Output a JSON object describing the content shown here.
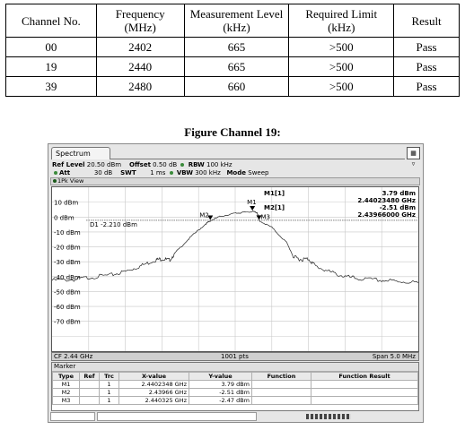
{
  "results_table": {
    "headers": [
      [
        "Channel No."
      ],
      [
        "Frequency",
        "(MHz)"
      ],
      [
        "Measurement Level",
        "(kHz)"
      ],
      [
        "Required Limit",
        "(kHz)"
      ],
      [
        "Result"
      ]
    ],
    "rows": [
      [
        "00",
        "2402",
        "665",
        ">500",
        "Pass"
      ],
      [
        "19",
        "2440",
        "665",
        ">500",
        "Pass"
      ],
      [
        "39",
        "2480",
        "660",
        ">500",
        "Pass"
      ]
    ]
  },
  "figure_caption": "Figure Channel 19:",
  "analyzer": {
    "tab": "Spectrum",
    "ref_level_label": "Ref Level",
    "ref_level_value": "20.50 dBm",
    "offset_label": "Offset",
    "offset_value": "0.50 dB",
    "rbw_label": "RBW",
    "rbw_value": "100 kHz",
    "att_label": "Att",
    "att_value": "30 dB",
    "swt_label": "SWT",
    "swt_value": "1 ms",
    "vbw_label": "VBW",
    "vbw_value": "300 kHz",
    "mode_label": "Mode",
    "mode_value": "Sweep",
    "view_label": "1Pk View",
    "readout": {
      "m1_label": "M1[1]",
      "m1_level": "3.79 dBm",
      "m1_freq": "2.44023480 GHz",
      "m2_label": "M2[1]",
      "m2_level": "-2.51 dBm",
      "m2_freq": "2.43966000 GHz"
    },
    "d1_label": "D1 -2.210 dBm",
    "marker_tags": [
      "M1",
      "M2",
      "M3"
    ],
    "footer": {
      "cf": "CF 2.44 GHz",
      "pts": "1001 pts",
      "span": "Span 5.0 MHz"
    },
    "marker_table": {
      "title": "Marker",
      "headers": [
        "Type",
        "Ref",
        "Trc",
        "X-value",
        "Y-value",
        "Function",
        "Function Result"
      ],
      "rows": [
        [
          "M1",
          "",
          "1",
          "2.4402348 GHz",
          "3.79 dBm",
          "",
          ""
        ],
        [
          "M2",
          "",
          "1",
          "2.43966 GHz",
          "-2.51 dBm",
          "",
          ""
        ],
        [
          "M3",
          "",
          "1",
          "2.440325 GHz",
          "-2.47 dBm",
          "",
          ""
        ]
      ]
    }
  },
  "chart_data": {
    "type": "line",
    "xlabel": "",
    "ylabel": "",
    "x_range_ghz": [
      2.4375,
      2.4425
    ],
    "ylim": [
      -90,
      20
    ],
    "y_ticks": [
      {
        "value": 10,
        "label": "10 dBm"
      },
      {
        "value": 0,
        "label": "0 dBm"
      },
      {
        "value": -10,
        "label": "-10 dBm"
      },
      {
        "value": -20,
        "label": "-20 dBm"
      },
      {
        "value": -30,
        "label": "-30 dBm"
      },
      {
        "value": -40,
        "label": "-40 dBm"
      },
      {
        "value": -50,
        "label": "-50 dBm"
      },
      {
        "value": -60,
        "label": "-60 dBm"
      },
      {
        "value": -70,
        "label": "-70 dBm"
      }
    ],
    "grid": true,
    "threshold_dbm": -2.21,
    "series": [
      {
        "x": [
          2.4375,
          2.4378,
          2.438,
          2.4383,
          2.4385,
          2.4387,
          2.4389,
          2.439,
          2.4391,
          2.4392,
          2.4394,
          2.4396,
          2.43966,
          2.4398,
          2.44,
          2.4401,
          2.44023,
          2.4403,
          2.44033,
          2.4405,
          2.4407,
          2.4408,
          2.4409,
          2.441,
          2.4411,
          2.4413,
          2.4415,
          2.4417,
          2.442,
          2.4422,
          2.4425
        ],
        "y": [
          -42.5,
          -42,
          -40.5,
          -39,
          -36.5,
          -33,
          -29,
          -28,
          -29,
          -23,
          -13,
          -4.5,
          -2.5,
          0.5,
          2.5,
          3,
          3.79,
          3,
          -2.47,
          -7,
          -17,
          -27,
          -28.5,
          -28,
          -33,
          -37,
          -40,
          -41.5,
          -42.5,
          -43,
          -44
        ]
      }
    ],
    "markers": [
      {
        "name": "M1",
        "x": 2.4402348,
        "y": 3.79
      },
      {
        "name": "M2",
        "x": 2.43966,
        "y": -2.51
      },
      {
        "name": "M3",
        "x": 2.440325,
        "y": -2.47
      }
    ]
  }
}
